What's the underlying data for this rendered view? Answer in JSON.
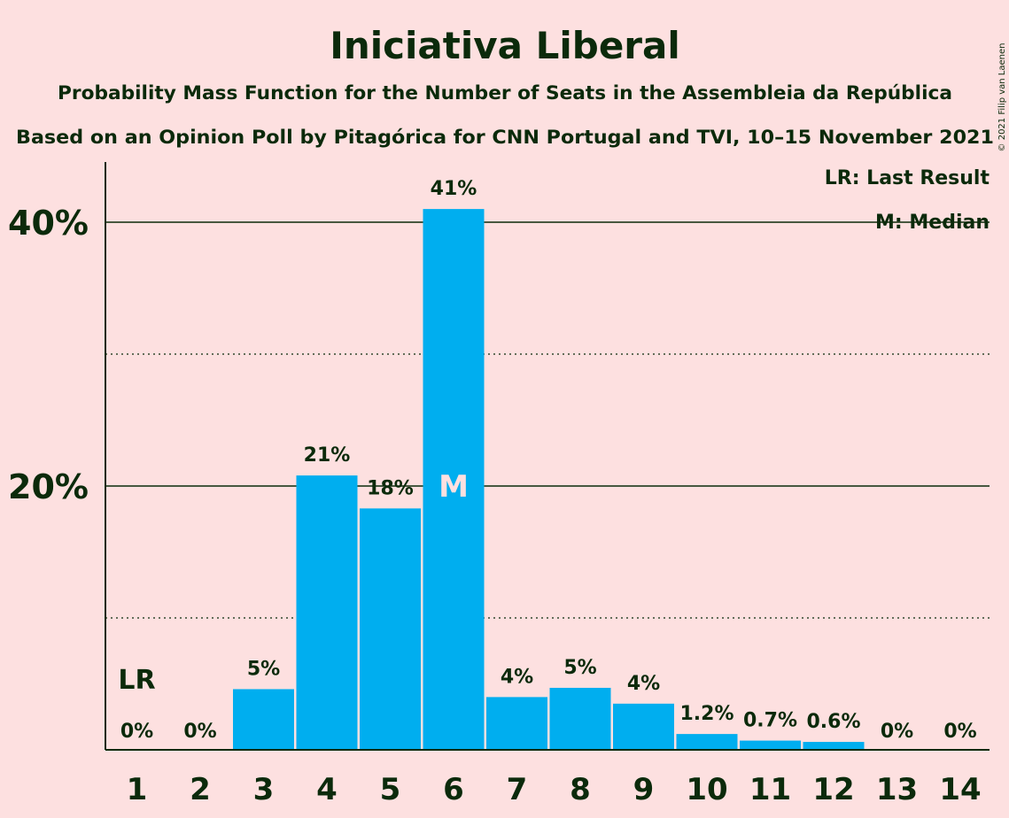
{
  "copyright": "© 2021 Filip van Laenen",
  "chart_data": {
    "type": "bar",
    "title": "Iniciativa Liberal",
    "subtitle": "Probability Mass Function for the Number of Seats in the Assembleia da República",
    "subtitle2": "Based on an Opinion Poll by Pitagórica for CNN Portugal and TVI, 10–15 November 2021",
    "categories": [
      "1",
      "2",
      "3",
      "4",
      "5",
      "6",
      "7",
      "8",
      "9",
      "10",
      "11",
      "12",
      "13",
      "14"
    ],
    "values": [
      0,
      0,
      4.6,
      20.8,
      18.3,
      41.0,
      4.0,
      4.7,
      3.5,
      1.2,
      0.7,
      0.6,
      0,
      0
    ],
    "labels": [
      "0%",
      "0%",
      "5%",
      "21%",
      "18%",
      "41%",
      "4%",
      "5%",
      "4%",
      "1.2%",
      "0.7%",
      "0.6%",
      "0%",
      "0%"
    ],
    "ylim": [
      0,
      45
    ],
    "yticks": [
      20,
      40
    ],
    "ytick_labels": [
      "20%",
      "40%"
    ],
    "minor_gridlines": [
      10,
      30
    ],
    "last_result_index": 0,
    "last_result_marker": "LR",
    "median_index": 5,
    "median_marker": "M",
    "legend": [
      "LR: Last Result",
      "M: Median"
    ],
    "legend_position": "top-right",
    "colors": {
      "bar": "#00aeef",
      "background": "#fde0e0",
      "text": "#0b2a0b",
      "median_text": "#fde0e0"
    }
  }
}
